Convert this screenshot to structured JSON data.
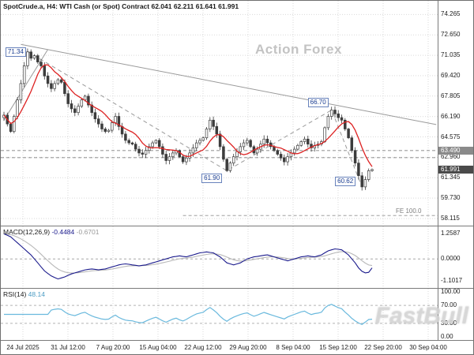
{
  "title": "SpotCrude.a, H4: WTI Cash (or Spot) Contract 62.041 62.211 61.641 61.991",
  "symbol": "SpotCrude.a",
  "timeframe": "H4",
  "watermarks": {
    "center": "Action Forex",
    "corner": "FastBull"
  },
  "colors": {
    "ma": "#dd2222",
    "macd_main": "#1a1a8c",
    "macd_signal": "#b8b8b8",
    "rsi": "#6ab9dd",
    "grid": "#d9d9d9",
    "candle": "#3c3c3c",
    "trend": "#9a9a9a",
    "level": "#6a6a6a",
    "frame": "#7a7a7a"
  },
  "chart_data": {
    "type": "candlestick",
    "title": "SpotCrude.a, H4: WTI Cash (or Spot) Contract",
    "ohlc_display": [
      "62.041",
      "62.211",
      "61.641",
      "61.991"
    ],
    "price_domain": [
      57.55,
      75.35
    ],
    "price_axis_labels": [
      "74.265",
      "72.650",
      "71.035",
      "69.420",
      "67.805",
      "66.190",
      "64.575",
      "62.960",
      "61.345",
      "59.730",
      "58.115"
    ],
    "x_labels": [
      "24 Jul 2025",
      "31 Jul 12:00",
      "7 Aug 20:00",
      "15 Aug 04:00",
      "22 Aug 12:00",
      "29 Aug 20:00",
      "8 Sep 04:00",
      "15 Sep 12:00",
      "22 Sep 20:00",
      "30 Sep 04:00"
    ],
    "close": [
      66.3,
      65.6,
      65.0,
      66.2,
      67.5,
      68.8,
      70.2,
      71.3,
      70.8,
      71.0,
      70.5,
      70.2,
      69.4,
      68.8,
      68.4,
      68.8,
      69.1,
      68.9,
      68.0,
      67.2,
      66.8,
      66.5,
      67.0,
      67.5,
      67.8,
      67.1,
      66.5,
      66.0,
      65.6,
      65.2,
      65.0,
      65.1,
      65.7,
      66.2,
      65.4,
      64.8,
      64.3,
      64.1,
      64.0,
      63.6,
      63.3,
      63.2,
      63.5,
      63.8,
      64.1,
      64.3,
      63.8,
      63.2,
      62.7,
      63.0,
      63.3,
      63.5,
      63.0,
      62.6,
      62.9,
      63.3,
      63.7,
      64.1,
      64.3,
      64.5,
      65.2,
      65.9,
      65.4,
      64.8,
      63.8,
      62.8,
      61.9,
      62.5,
      63.0,
      63.4,
      63.8,
      64.1,
      64.3,
      63.8,
      63.3,
      63.6,
      64.0,
      64.4,
      64.1,
      63.8,
      63.5,
      63.2,
      62.9,
      62.6,
      63.0,
      63.3,
      63.6,
      63.9,
      64.2,
      64.4,
      64.0,
      63.7,
      63.9,
      64.0,
      64.2,
      65.3,
      66.2,
      66.7,
      66.4,
      66.1,
      65.9,
      65.2,
      64.5,
      63.5,
      62.5,
      61.5,
      60.62,
      61.2,
      61.9,
      61.99
    ],
    "ma_period": 8,
    "price_tags": [
      {
        "text": "63.490",
        "value": 63.49,
        "bg": "#8a8a8a"
      },
      {
        "text": "61.991",
        "value": 61.991,
        "bg": "#4a4a4a"
      }
    ],
    "swing_labels": [
      {
        "text": "71.34",
        "idx": 7,
        "price": 71.34,
        "side": "left"
      },
      {
        "text": "61.90",
        "idx": 66,
        "price": 61.9,
        "side": "below"
      },
      {
        "text": "66.70",
        "idx": 97,
        "price": 66.7,
        "side": "above"
      },
      {
        "text": "60.62",
        "idx": 106,
        "price": 60.62,
        "side": "upleft"
      }
    ],
    "trendlines": [
      {
        "dash": false,
        "points": [
          {
            "idx": 5,
            "price": 71.9
          },
          {
            "idx": 128,
            "price": 65.55
          }
        ]
      },
      {
        "dash": false,
        "points": [
          {
            "idx": 0,
            "price": 65.9
          },
          {
            "idx": 13,
            "price": 71.5
          }
        ]
      },
      {
        "dash": true,
        "points": [
          {
            "idx": 7,
            "price": 71.34
          },
          {
            "idx": 66,
            "price": 61.9
          },
          {
            "idx": 97,
            "price": 66.7
          },
          {
            "idx": 106,
            "price": 60.62
          }
        ]
      }
    ],
    "hlines": [
      {
        "price": 63.49
      },
      {
        "price": 62.93
      }
    ],
    "fib_line": {
      "price": 58.35,
      "label": "FE 100.0",
      "from_idx": 53
    },
    "macd": {
      "name": "MACD(12,26,9)",
      "value1": "-0.4484",
      "value2": "-0.6701",
      "signal_period": 9,
      "axis_labels": [
        "1.2587",
        "0.0000",
        "-1.1017"
      ],
      "domain": [
        -1.45,
        1.62
      ],
      "values": [
        1.25,
        1.18,
        1.1,
        0.95,
        0.8,
        0.65,
        0.5,
        0.35,
        0.2,
        0.0,
        -0.2,
        -0.4,
        -0.6,
        -0.73,
        -0.85,
        -0.93,
        -1.0,
        -0.95,
        -0.9,
        -0.82,
        -0.75,
        -0.7,
        -0.65,
        -0.6,
        -0.55,
        -0.52,
        -0.5,
        -0.52,
        -0.55,
        -0.52,
        -0.5,
        -0.45,
        -0.4,
        -0.35,
        -0.3,
        -0.27,
        -0.25,
        -0.27,
        -0.3,
        -0.32,
        -0.35,
        -0.32,
        -0.3,
        -0.25,
        -0.2,
        -0.15,
        -0.1,
        -0.05,
        0.0,
        0.05,
        0.1,
        0.12,
        0.15,
        0.12,
        0.1,
        0.15,
        0.2,
        0.25,
        0.3,
        0.32,
        0.35,
        0.32,
        0.3,
        0.2,
        0.1,
        -0.05,
        -0.2,
        -0.25,
        -0.3,
        -0.25,
        -0.2,
        -0.1,
        0.0,
        0.05,
        0.1,
        0.12,
        0.15,
        0.18,
        0.2,
        0.15,
        0.1,
        0.05,
        0.0,
        -0.05,
        -0.1,
        -0.05,
        0.0,
        0.05,
        0.1,
        0.12,
        0.15,
        0.12,
        0.1,
        0.15,
        0.2,
        0.3,
        0.4,
        0.45,
        0.5,
        0.48,
        0.45,
        0.33,
        0.2,
        0.0,
        -0.2,
        -0.45,
        -0.62,
        -0.7,
        -0.67,
        -0.4484
      ]
    },
    "rsi": {
      "name": "RSI(14)",
      "value": "48.14",
      "period": 14,
      "axis_labels": [
        "100.00",
        "70.00",
        "30.00",
        "0.00"
      ],
      "levels": [
        70,
        30
      ]
    }
  }
}
